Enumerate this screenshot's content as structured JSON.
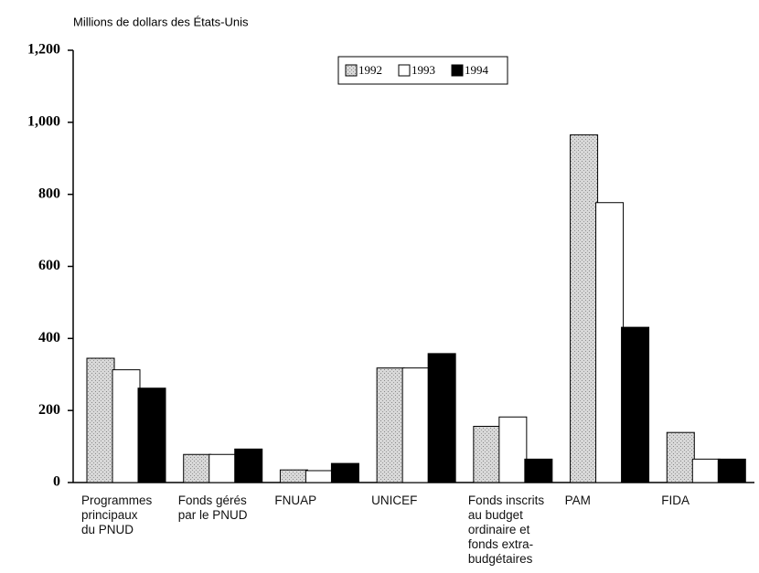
{
  "chart_data": {
    "type": "bar",
    "title": "Millions de dollars des États-Unis",
    "categories": [
      "Programmes\nprincipaux\ndu PNUD",
      "Fonds gérés\npar le PNUD",
      "FNUAP",
      "UNICEF",
      "Fonds inscrits\nau budget\nordinaire et\nfonds extra-\nbudgétaires",
      "PAM",
      "FIDA"
    ],
    "series": [
      {
        "name": "1992",
        "color": "#c4c4c4",
        "values": [
          345,
          78,
          35,
          318,
          156,
          965,
          139
        ]
      },
      {
        "name": "1993",
        "color": "#ffffff",
        "values": [
          313,
          78,
          33,
          318,
          182,
          777,
          65
        ]
      },
      {
        "name": "1994",
        "color": "#000000",
        "values": [
          262,
          93,
          53,
          358,
          65,
          431,
          65
        ]
      }
    ],
    "ylim": [
      0,
      1200
    ],
    "yticks": [
      0,
      200,
      400,
      600,
      800,
      {
        "value": 1000,
        "label": "1,000"
      },
      {
        "value": 1200,
        "label": "1,200"
      }
    ],
    "legend_position": "top",
    "grid": false
  }
}
